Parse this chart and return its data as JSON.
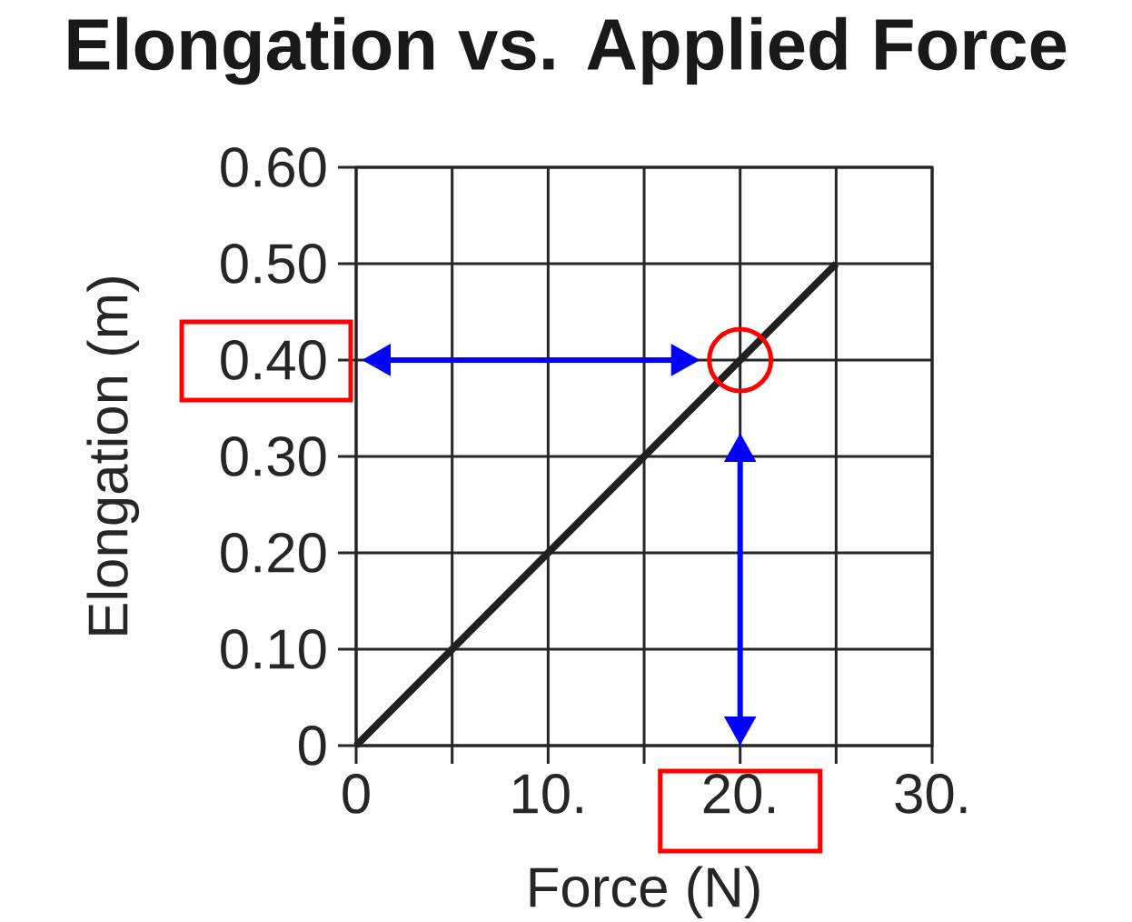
{
  "chart_data": {
    "type": "line",
    "title": "Elongation vs. Applied Force",
    "xlabel": "Force (N)",
    "ylabel": "Elongation (m)",
    "x": [
      0,
      25
    ],
    "values": [
      0,
      0.5
    ],
    "color": "#231f20",
    "xlim": [
      0,
      30
    ],
    "ylim": [
      0,
      0.6
    ],
    "xticks": [
      0,
      {
        "value": 5,
        "label": null
      },
      {
        "value": 10,
        "label": "10."
      },
      {
        "value": 15,
        "label": null
      },
      {
        "value": 20,
        "label": "20."
      },
      {
        "value": 25,
        "label": null
      },
      {
        "value": 30,
        "label": "30."
      }
    ],
    "yticks": [
      0,
      {
        "value": 0.1,
        "label": "0.10"
      },
      {
        "value": 0.2,
        "label": "0.20"
      },
      {
        "value": 0.3,
        "label": "0.30"
      },
      {
        "value": 0.4,
        "label": "0.40"
      },
      {
        "value": 0.5,
        "label": "0.50"
      },
      {
        "value": 0.6,
        "label": "0.60"
      }
    ],
    "ref_lines": [
      {
        "axis": "y",
        "value": 0.4,
        "color": "#0000ff"
      },
      {
        "axis": "x",
        "value": 20,
        "color": "#0000ff"
      }
    ],
    "grid": true,
    "marker": "none",
    "line_style": "solid"
  }
}
